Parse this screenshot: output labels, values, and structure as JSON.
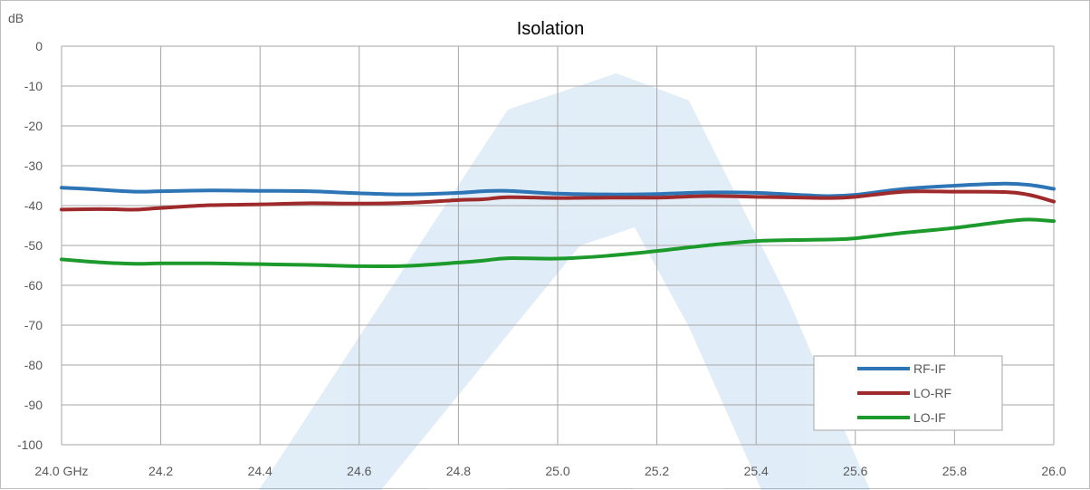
{
  "chart_data": {
    "type": "line",
    "title": "Isolation",
    "ylabel": "dB",
    "xlabel": "",
    "x_tick_labels": [
      "24.0 GHz",
      "24.2",
      "24.4",
      "24.6",
      "24.8",
      "25.0",
      "25.2",
      "25.4",
      "25.6",
      "25.8",
      "26.0"
    ],
    "y_tick_labels": [
      "0",
      "-10",
      "-20",
      "-30",
      "-40",
      "-50",
      "-60",
      "-70",
      "-80",
      "-90",
      "-100"
    ],
    "xlim": [
      24.0,
      26.0
    ],
    "ylim": [
      -100,
      0
    ],
    "grid": true,
    "legend_position": "bottom-right",
    "x": [
      24.0,
      24.05,
      24.1,
      24.15,
      24.2,
      24.3,
      24.4,
      24.5,
      24.6,
      24.7,
      24.8,
      24.85,
      24.9,
      25.0,
      25.1,
      25.2,
      25.3,
      25.4,
      25.5,
      25.55,
      25.6,
      25.7,
      25.8,
      25.9,
      25.95,
      26.0
    ],
    "series": [
      {
        "name": "RF-IF",
        "color": "#2e75b6",
        "values": [
          -35.5,
          -35.8,
          -36.2,
          -36.5,
          -36.4,
          -36.2,
          -36.3,
          -36.4,
          -36.9,
          -37.2,
          -36.8,
          -36.4,
          -36.3,
          -37.0,
          -37.2,
          -37.1,
          -36.7,
          -36.8,
          -37.4,
          -37.6,
          -37.3,
          -35.8,
          -35.0,
          -34.5,
          -34.8,
          -35.8
        ]
      },
      {
        "name": "LO-RF",
        "color": "#9e2a2b",
        "values": [
          -41.0,
          -40.9,
          -40.9,
          -41.0,
          -40.6,
          -39.9,
          -39.7,
          -39.4,
          -39.5,
          -39.3,
          -38.6,
          -38.4,
          -37.9,
          -38.1,
          -38.0,
          -38.0,
          -37.6,
          -37.8,
          -38.0,
          -38.1,
          -37.8,
          -36.5,
          -36.5,
          -36.6,
          -37.3,
          -39.0
        ]
      },
      {
        "name": "LO-IF",
        "color": "#1d9a2c",
        "values": [
          -53.5,
          -54.0,
          -54.4,
          -54.6,
          -54.5,
          -54.5,
          -54.7,
          -54.9,
          -55.2,
          -55.1,
          -54.3,
          -53.8,
          -53.2,
          -53.3,
          -52.6,
          -51.4,
          -50.0,
          -48.9,
          -48.6,
          -48.5,
          -48.2,
          -46.8,
          -45.6,
          -44.0,
          -43.5,
          -43.9
        ]
      }
    ]
  }
}
